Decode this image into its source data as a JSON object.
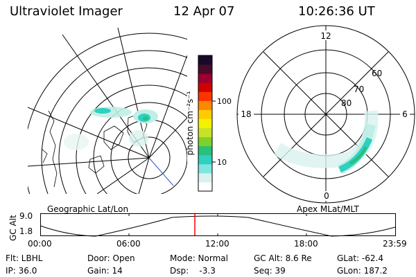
{
  "header": {
    "title": "Ultraviolet Imager",
    "date": "12 Apr 07",
    "time": "10:26:36 UT"
  },
  "colorbar": {
    "label": "photon cm⁻²s⁻¹",
    "tick_100": "100",
    "tick_10": "10",
    "colors": [
      "#ffffff",
      "#d8f3ef",
      "#7ee6e0",
      "#2fd0c0",
      "#29c07a",
      "#7ed12a",
      "#c8e22a",
      "#f2f200",
      "#ffcc00",
      "#ff8800",
      "#ff3300",
      "#d10000",
      "#9a0030",
      "#4a0a2a",
      "#1a0a2a"
    ]
  },
  "left_map": {
    "caption": "Geographic Lat/Lon"
  },
  "right_map": {
    "caption": "Apex MLat/MLT",
    "mlt_labels": {
      "top": "12",
      "right": "6",
      "bottom": "0",
      "left": "18"
    },
    "lat_labels": [
      "60",
      "70",
      "80"
    ]
  },
  "timeline": {
    "ylabel": "GC Alt",
    "ytick_top": "9.0",
    "ytick_bottom": "1.8",
    "xticks": [
      "00:00",
      "06:00",
      "12:00",
      "18:00",
      "23:59"
    ],
    "marker_color": "#ff0000"
  },
  "info": {
    "filter": "Flt: LBHL",
    "ip": "IP: 36.0",
    "door": "Door: Open",
    "gain": "Gain: 14",
    "mode": "Mode: Normal",
    "dsp": "Dsp:    -3.3",
    "gc_alt": "GC Alt: 8.6 Re",
    "seq": "Seq: 39",
    "glat": "GLat: -62.4",
    "glon": "GLon: 187.2"
  }
}
